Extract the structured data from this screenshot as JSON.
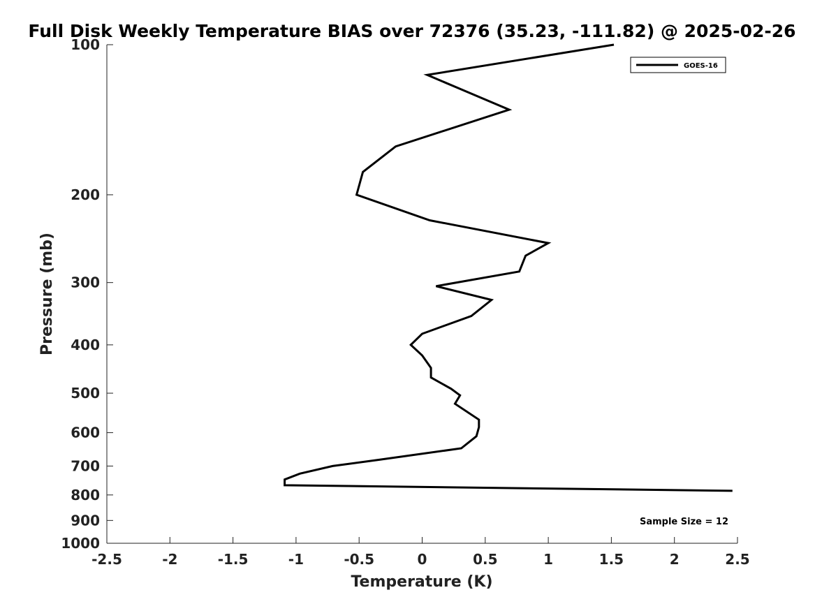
{
  "chart_data": {
    "type": "line",
    "title": "Full Disk Weekly Temperature BIAS over 72376 (35.23, -111.82) @ 2025-02-26",
    "xlabel": "Temperature (K)",
    "ylabel": "Pressure (mb)",
    "xlim": [
      -2.5,
      2.5
    ],
    "ylim": [
      1000,
      100
    ],
    "y_scale": "log",
    "y_inverted": true,
    "grid": false,
    "legend_position": "top-right",
    "x_ticks": [
      -2.5,
      -2,
      -1.5,
      -1,
      -0.5,
      0,
      0.5,
      1,
      1.5,
      2,
      2.5
    ],
    "x_tick_labels": [
      "-2.5",
      "-2",
      "-1.5",
      "-1",
      "-0.5",
      "0",
      "0.5",
      "1",
      "1.5",
      "2",
      "2.5"
    ],
    "y_ticks": [
      100,
      200,
      300,
      400,
      500,
      600,
      700,
      800,
      900,
      1000
    ],
    "y_tick_labels": [
      "100",
      "200",
      "300",
      "400",
      "500",
      "600",
      "700",
      "800",
      "900",
      "1000"
    ],
    "annotation": "Sample Size = 12",
    "series": [
      {
        "name": "GOES-16",
        "color": "#000000",
        "points": [
          {
            "x": 1.52,
            "p": 100
          },
          {
            "x": 0.04,
            "p": 115
          },
          {
            "x": 0.69,
            "p": 135
          },
          {
            "x": -0.21,
            "p": 160
          },
          {
            "x": -0.47,
            "p": 180
          },
          {
            "x": -0.52,
            "p": 200
          },
          {
            "x": 0.06,
            "p": 225
          },
          {
            "x": 1.0,
            "p": 250
          },
          {
            "x": 0.82,
            "p": 265
          },
          {
            "x": 0.77,
            "p": 285
          },
          {
            "x": 0.11,
            "p": 305
          },
          {
            "x": 0.55,
            "p": 325
          },
          {
            "x": 0.39,
            "p": 350
          },
          {
            "x": 0.0,
            "p": 380
          },
          {
            "x": -0.09,
            "p": 400
          },
          {
            "x": 0.0,
            "p": 420
          },
          {
            "x": 0.07,
            "p": 445
          },
          {
            "x": 0.07,
            "p": 465
          },
          {
            "x": 0.23,
            "p": 490
          },
          {
            "x": 0.3,
            "p": 505
          },
          {
            "x": 0.26,
            "p": 525
          },
          {
            "x": 0.45,
            "p": 565
          },
          {
            "x": 0.45,
            "p": 585
          },
          {
            "x": 0.43,
            "p": 610
          },
          {
            "x": 0.31,
            "p": 645
          },
          {
            "x": -0.34,
            "p": 680
          },
          {
            "x": -0.71,
            "p": 700
          },
          {
            "x": -0.97,
            "p": 725
          },
          {
            "x": -1.09,
            "p": 745
          },
          {
            "x": -1.09,
            "p": 765
          },
          {
            "x": 2.46,
            "p": 785
          }
        ]
      }
    ]
  }
}
